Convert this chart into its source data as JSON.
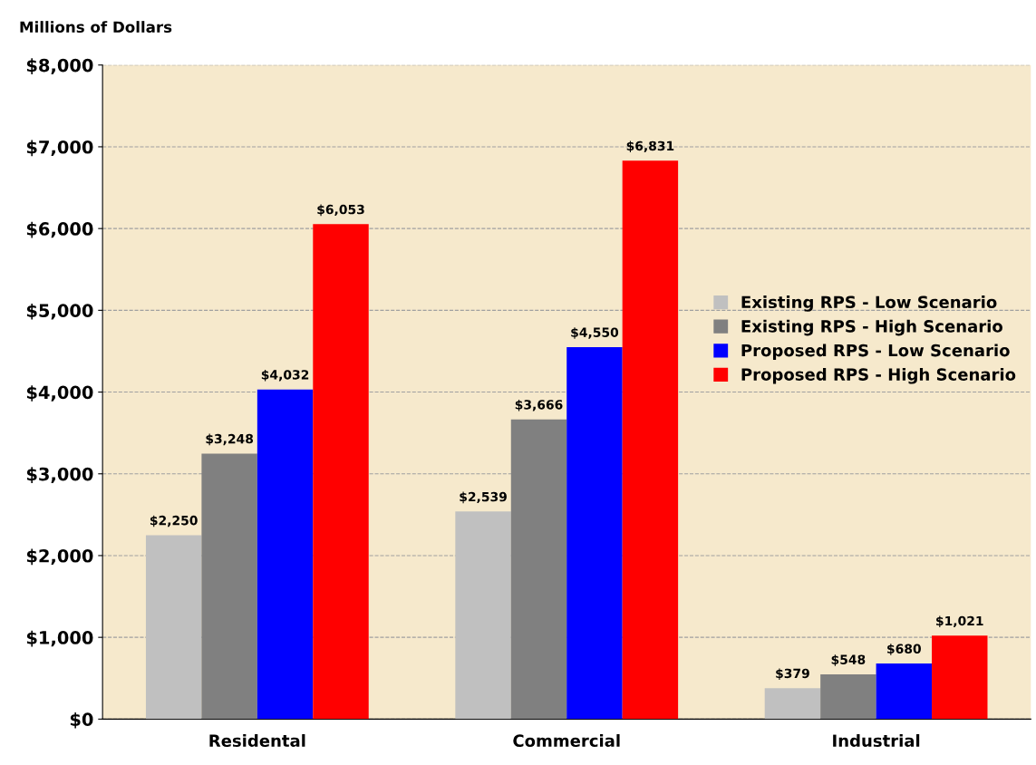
{
  "chart_data": {
    "type": "bar",
    "ylabel": "Millions of Dollars",
    "categories": [
      "Residental",
      "Commercial",
      "Industrial"
    ],
    "series": [
      {
        "name": "Existing RPS - Low Scenario",
        "color": "#c0c0c0",
        "values": [
          2250,
          2539,
          379
        ],
        "value_labels": [
          "$2,250",
          "$2,539",
          "$379"
        ]
      },
      {
        "name": "Existing RPS - High Scenario",
        "color": "#808080",
        "values": [
          3248,
          3666,
          548
        ],
        "value_labels": [
          "$3,248",
          "$3,666",
          "$548"
        ]
      },
      {
        "name": "Proposed RPS - Low Scenario",
        "color": "#0000ff",
        "values": [
          4032,
          4550,
          680
        ],
        "value_labels": [
          "$4,032",
          "$4,550",
          "$680"
        ]
      },
      {
        "name": "Proposed RPS - High Scenario",
        "color": "#ff0000",
        "values": [
          6053,
          6831,
          1021
        ],
        "value_labels": [
          "$6,053",
          "$6,831",
          "$1,021"
        ]
      }
    ],
    "ylim": [
      0,
      8000
    ],
    "yticks": [
      {
        "value": 0,
        "label": "$0"
      },
      {
        "value": 1000,
        "label": "$1,000"
      },
      {
        "value": 2000,
        "label": "$2,000"
      },
      {
        "value": 3000,
        "label": "$3,000"
      },
      {
        "value": 4000,
        "label": "$4,000"
      },
      {
        "value": 5000,
        "label": "$5,000"
      },
      {
        "value": 6000,
        "label": "$6,000"
      },
      {
        "value": 7000,
        "label": "$7,000"
      },
      {
        "value": 8000,
        "label": "$8,000"
      }
    ],
    "grid": "y",
    "legend": "right"
  }
}
